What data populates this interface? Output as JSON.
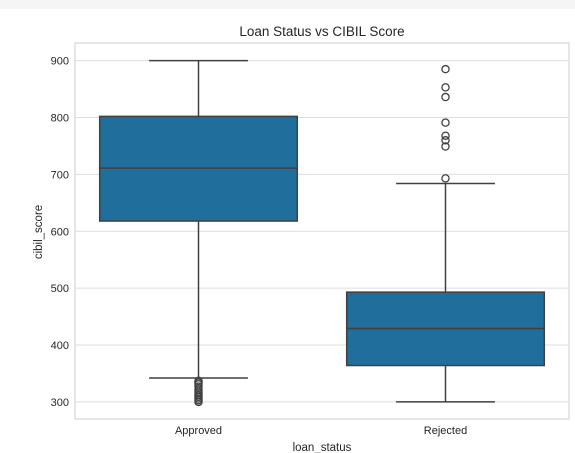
{
  "chart_data": {
    "type": "box",
    "title": "Loan Status vs CIBIL Score",
    "xlabel": "loan_status",
    "ylabel": "cibil_score",
    "ylim": [
      270,
      931
    ],
    "yticks": [
      300,
      400,
      500,
      600,
      700,
      800,
      900
    ],
    "grid": true,
    "box_color": "#1f6e9c",
    "categories": [
      "Approved",
      "Rejected"
    ],
    "boxes": [
      {
        "category": "Approved",
        "whisker_low": 342,
        "q1": 618,
        "median": 711,
        "q3": 802,
        "whisker_high": 900,
        "outliers": [
          337,
          334,
          331,
          327,
          322,
          318,
          315,
          312,
          309,
          306,
          303,
          300
        ]
      },
      {
        "category": "Rejected",
        "whisker_low": 300,
        "q1": 364,
        "median": 429,
        "q3": 493,
        "whisker_high": 684,
        "outliers": [
          693,
          749,
          760,
          768,
          791,
          836,
          853,
          885
        ]
      }
    ]
  }
}
